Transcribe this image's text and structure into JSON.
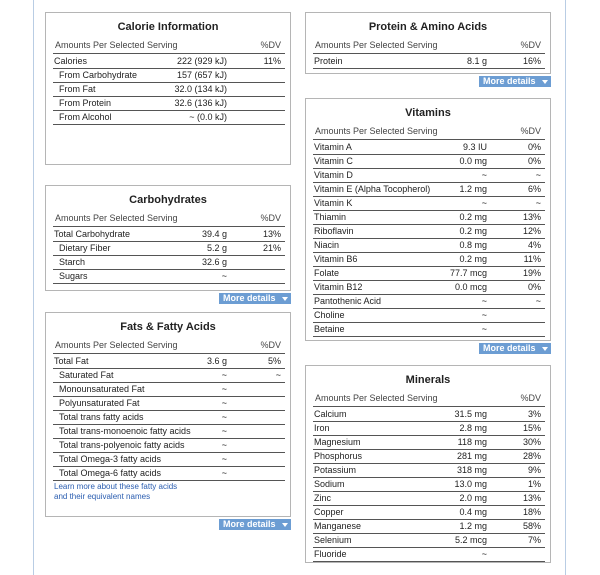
{
  "panels": [
    {
      "title": "Calorie Information",
      "header": [
        "Amounts Per Selected Serving",
        "%DV"
      ],
      "rows": [
        {
          "name": "Calories",
          "amount": "222 (929 kJ)",
          "dv": "11%"
        },
        {
          "name": "From Carbohydrate",
          "amount": "157 (657 kJ)",
          "indent": true
        },
        {
          "name": "From Fat",
          "amount": "32.0 (134 kJ)",
          "indent": true
        },
        {
          "name": "From Protein",
          "amount": "32.6 (136 kJ)",
          "indent": true
        },
        {
          "name": "From Alcohol",
          "amount": "~ (0.0 kJ)",
          "indent": true
        }
      ]
    },
    {
      "title": "Carbohydrates",
      "header": [
        "Amounts Per Selected Serving",
        "%DV"
      ],
      "rows": [
        {
          "name": "Total Carbohydrate",
          "amount": "39.4 g",
          "dv": "13%"
        },
        {
          "name": "Dietary Fiber",
          "amount": "5.2 g",
          "dv": "21%",
          "indent": true
        },
        {
          "name": "Starch",
          "amount": "32.6 g",
          "indent": true
        },
        {
          "name": "Sugars",
          "amount": "~",
          "indent": true
        }
      ],
      "button": "More details"
    },
    {
      "title": "Fats & Fatty Acids",
      "header": [
        "Amounts Per Selected Serving",
        "%DV"
      ],
      "rows": [
        {
          "name": "Total Fat",
          "amount": "3.6 g",
          "dv": "5%"
        },
        {
          "name": "Saturated Fat",
          "amount": "~",
          "dv": "~",
          "indent": true
        },
        {
          "name": "Monounsaturated Fat",
          "amount": "~",
          "indent": true
        },
        {
          "name": "Polyunsaturated Fat",
          "amount": "~",
          "indent": true
        },
        {
          "name": "Total trans fatty acids",
          "amount": "~",
          "indent": true
        },
        {
          "name": "Total trans-monoenoic fatty acids",
          "amount": "~",
          "indent": true
        },
        {
          "name": "Total trans-polyenoic fatty acids",
          "amount": "~",
          "indent": true
        },
        {
          "name": "Total Omega-3 fatty acids",
          "amount": "~",
          "indent": true
        },
        {
          "name": "Total Omega-6 fatty acids",
          "amount": "~",
          "indent": true
        }
      ],
      "link": [
        "Learn more about these fatty acids",
        "and their equivalent names"
      ],
      "button": "More details"
    },
    {
      "title": "Protein & Amino Acids",
      "header": [
        "Amounts Per Selected Serving",
        "%DV"
      ],
      "rows": [
        {
          "name": "Protein",
          "amount": "8.1 g",
          "dv": "16%"
        }
      ],
      "button": "More details"
    },
    {
      "title": "Vitamins",
      "header": [
        "Amounts Per Selected Serving",
        "%DV"
      ],
      "rows": [
        {
          "name": "Vitamin A",
          "amount": "9.3 IU",
          "dv": "0%"
        },
        {
          "name": "Vitamin C",
          "amount": "0.0 mg",
          "dv": "0%"
        },
        {
          "name": "Vitamin D",
          "amount": "~",
          "dv": "~"
        },
        {
          "name": "Vitamin E (Alpha Tocopherol)",
          "amount": "1.2 mg",
          "dv": "6%"
        },
        {
          "name": "Vitamin K",
          "amount": "~",
          "dv": "~"
        },
        {
          "name": "Thiamin",
          "amount": "0.2 mg",
          "dv": "13%"
        },
        {
          "name": "Riboflavin",
          "amount": "0.2 mg",
          "dv": "12%"
        },
        {
          "name": "Niacin",
          "amount": "0.8 mg",
          "dv": "4%"
        },
        {
          "name": "Vitamin B6",
          "amount": "0.2 mg",
          "dv": "11%"
        },
        {
          "name": "Folate",
          "amount": "77.7 mcg",
          "dv": "19%"
        },
        {
          "name": "Vitamin B12",
          "amount": "0.0 mcg",
          "dv": "0%"
        },
        {
          "name": "Pantothenic Acid",
          "amount": "~",
          "dv": "~"
        },
        {
          "name": "Choline",
          "amount": "~"
        },
        {
          "name": "Betaine",
          "amount": "~"
        }
      ],
      "button": "More details"
    },
    {
      "title": "Minerals",
      "header": [
        "Amounts Per Selected Serving",
        "%DV"
      ],
      "rows": [
        {
          "name": "Calcium",
          "amount": "31.5 mg",
          "dv": "3%"
        },
        {
          "name": "Iron",
          "amount": "2.8 mg",
          "dv": "15%"
        },
        {
          "name": "Magnesium",
          "amount": "118 mg",
          "dv": "30%"
        },
        {
          "name": "Phosphorus",
          "amount": "281 mg",
          "dv": "28%"
        },
        {
          "name": "Potassium",
          "amount": "318 mg",
          "dv": "9%"
        },
        {
          "name": "Sodium",
          "amount": "13.0 mg",
          "dv": "1%"
        },
        {
          "name": "Zinc",
          "amount": "2.0 mg",
          "dv": "13%"
        },
        {
          "name": "Copper",
          "amount": "0.4 mg",
          "dv": "18%"
        },
        {
          "name": "Manganese",
          "amount": "1.2 mg",
          "dv": "58%"
        },
        {
          "name": "Selenium",
          "amount": "5.2 mcg",
          "dv": "7%"
        },
        {
          "name": "Fluoride",
          "amount": "~"
        }
      ]
    }
  ]
}
